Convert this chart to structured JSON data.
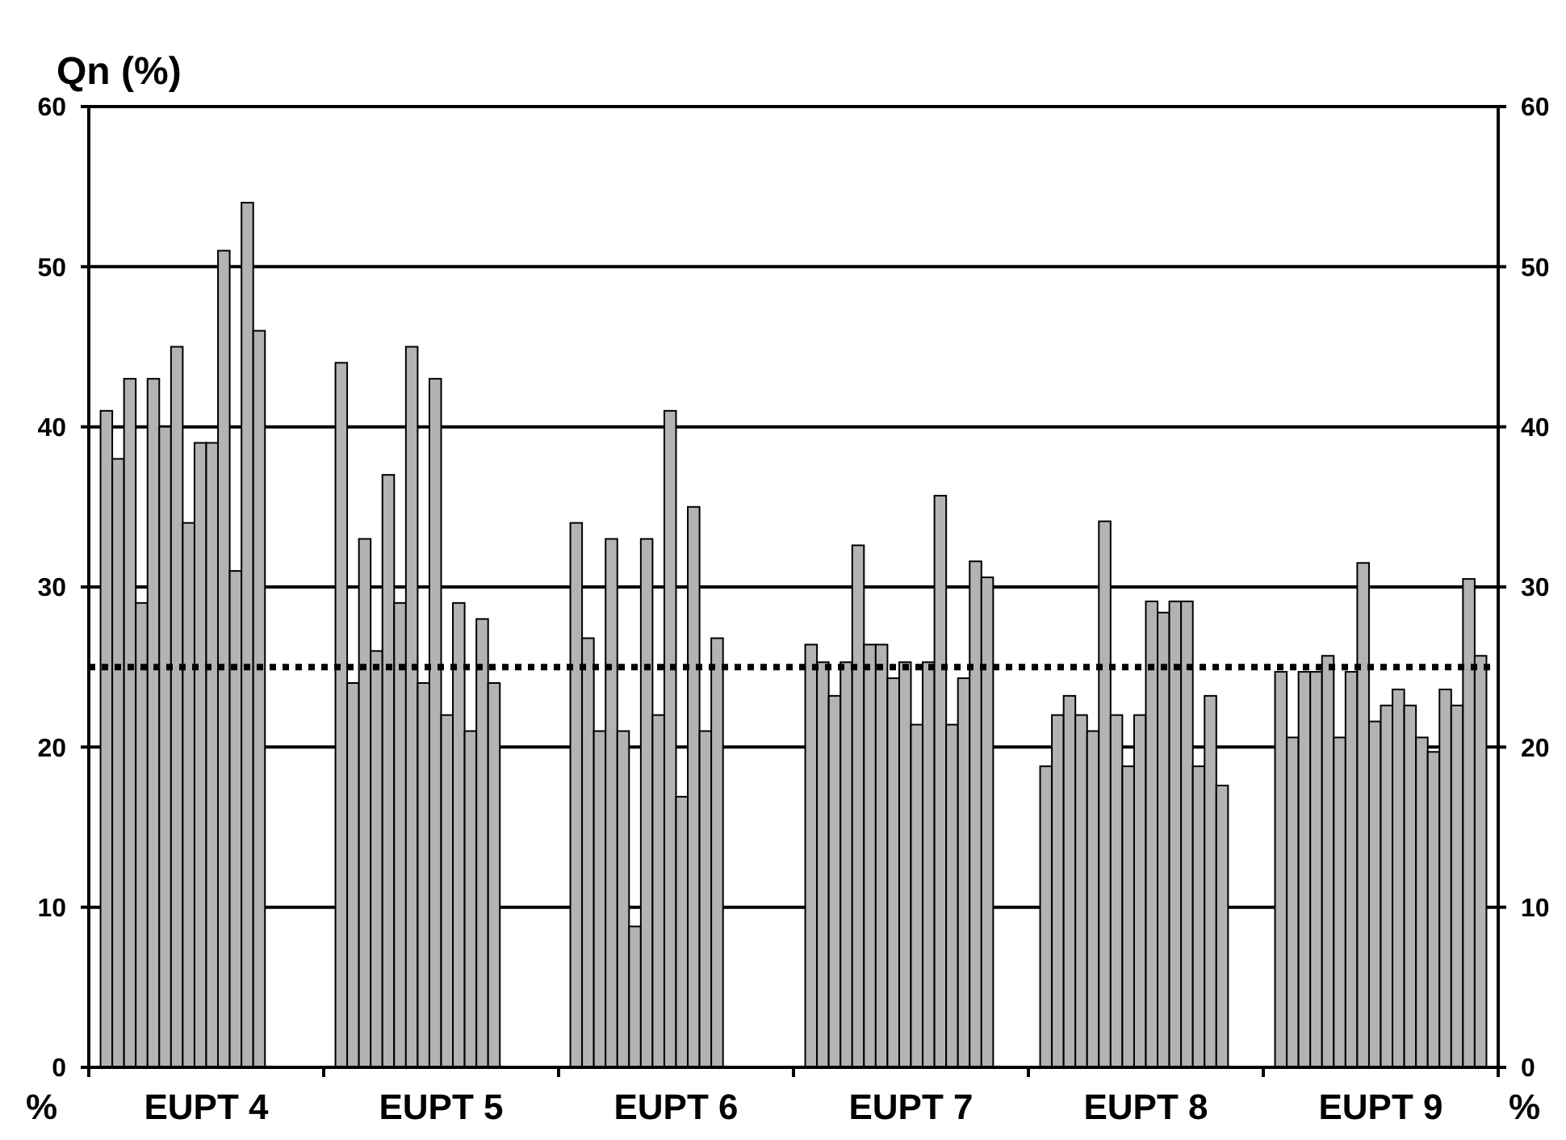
{
  "chart_data": {
    "type": "bar",
    "ylabel": "Qn (%)",
    "annotations": [
      "%",
      "%"
    ],
    "categories": [
      "EUPT 4",
      "EUPT 5",
      "EUPT 6",
      "EUPT 7",
      "EUPT 8",
      "EUPT 9"
    ],
    "series": [
      {
        "color": "#b3b3b3",
        "values": [
          41,
          44,
          34,
          26.4,
          18.8,
          24.7
        ]
      },
      {
        "color": "#b3b3b3",
        "values": [
          38,
          24,
          26.8,
          25.3,
          22,
          20.6
        ]
      },
      {
        "color": "#b3b3b3",
        "values": [
          43,
          33,
          21,
          23.2,
          23.2,
          24.7
        ]
      },
      {
        "color": "#b3b3b3",
        "values": [
          29,
          26,
          33,
          25.3,
          22,
          24.7
        ]
      },
      {
        "color": "#b3b3b3",
        "values": [
          43,
          37,
          21,
          32.6,
          21,
          25.7
        ]
      },
      {
        "color": "#b3b3b3",
        "values": [
          40,
          29,
          8.8,
          26.4,
          34.1,
          20.6
        ]
      },
      {
        "color": "#b3b3b3",
        "values": [
          45,
          45,
          33,
          26.4,
          22,
          24.7
        ]
      },
      {
        "color": "#b3b3b3",
        "values": [
          34,
          24,
          22,
          24.3,
          18.8,
          31.5
        ]
      },
      {
        "color": "#b3b3b3",
        "values": [
          39,
          43,
          41,
          25.3,
          22,
          21.6
        ]
      },
      {
        "color": "#b3b3b3",
        "values": [
          39,
          22,
          16.9,
          21.4,
          29.1,
          22.6
        ]
      },
      {
        "color": "#b3b3b3",
        "values": [
          51,
          29,
          35,
          25.3,
          28.4,
          23.6
        ]
      },
      {
        "color": "#b3b3b3",
        "values": [
          31,
          21,
          21,
          35.7,
          29.1,
          22.6
        ]
      },
      {
        "color": "#b3b3b3",
        "values": [
          54,
          28,
          26.8,
          21.4,
          29.1,
          20.6
        ]
      },
      {
        "color": "#b3b3b3",
        "values": [
          46,
          24,
          null,
          24.3,
          18.8,
          19.7
        ]
      },
      {
        "color": "#b3b3b3",
        "values": [
          null,
          null,
          null,
          31.6,
          23.2,
          23.6
        ]
      },
      {
        "color": "#b3b3b3",
        "values": [
          null,
          null,
          null,
          30.6,
          17.6,
          22.6
        ]
      },
      {
        "color": "#b3b3b3",
        "values": [
          null,
          null,
          null,
          null,
          null,
          30.5
        ]
      },
      {
        "color": "#b3b3b3",
        "values": [
          null,
          null,
          null,
          null,
          null,
          25.7
        ]
      }
    ],
    "ylim": [
      0,
      60
    ],
    "yticks": [
      0,
      10,
      20,
      30,
      40,
      50,
      60
    ],
    "y2lim": [
      0,
      60
    ],
    "y2ticks": [
      0,
      10,
      20,
      30,
      40,
      50,
      60
    ],
    "grid": "y",
    "ref_lines": [
      {
        "axis": "y",
        "value": 25,
        "line_style": "dotted",
        "color": "#000000"
      }
    ]
  }
}
